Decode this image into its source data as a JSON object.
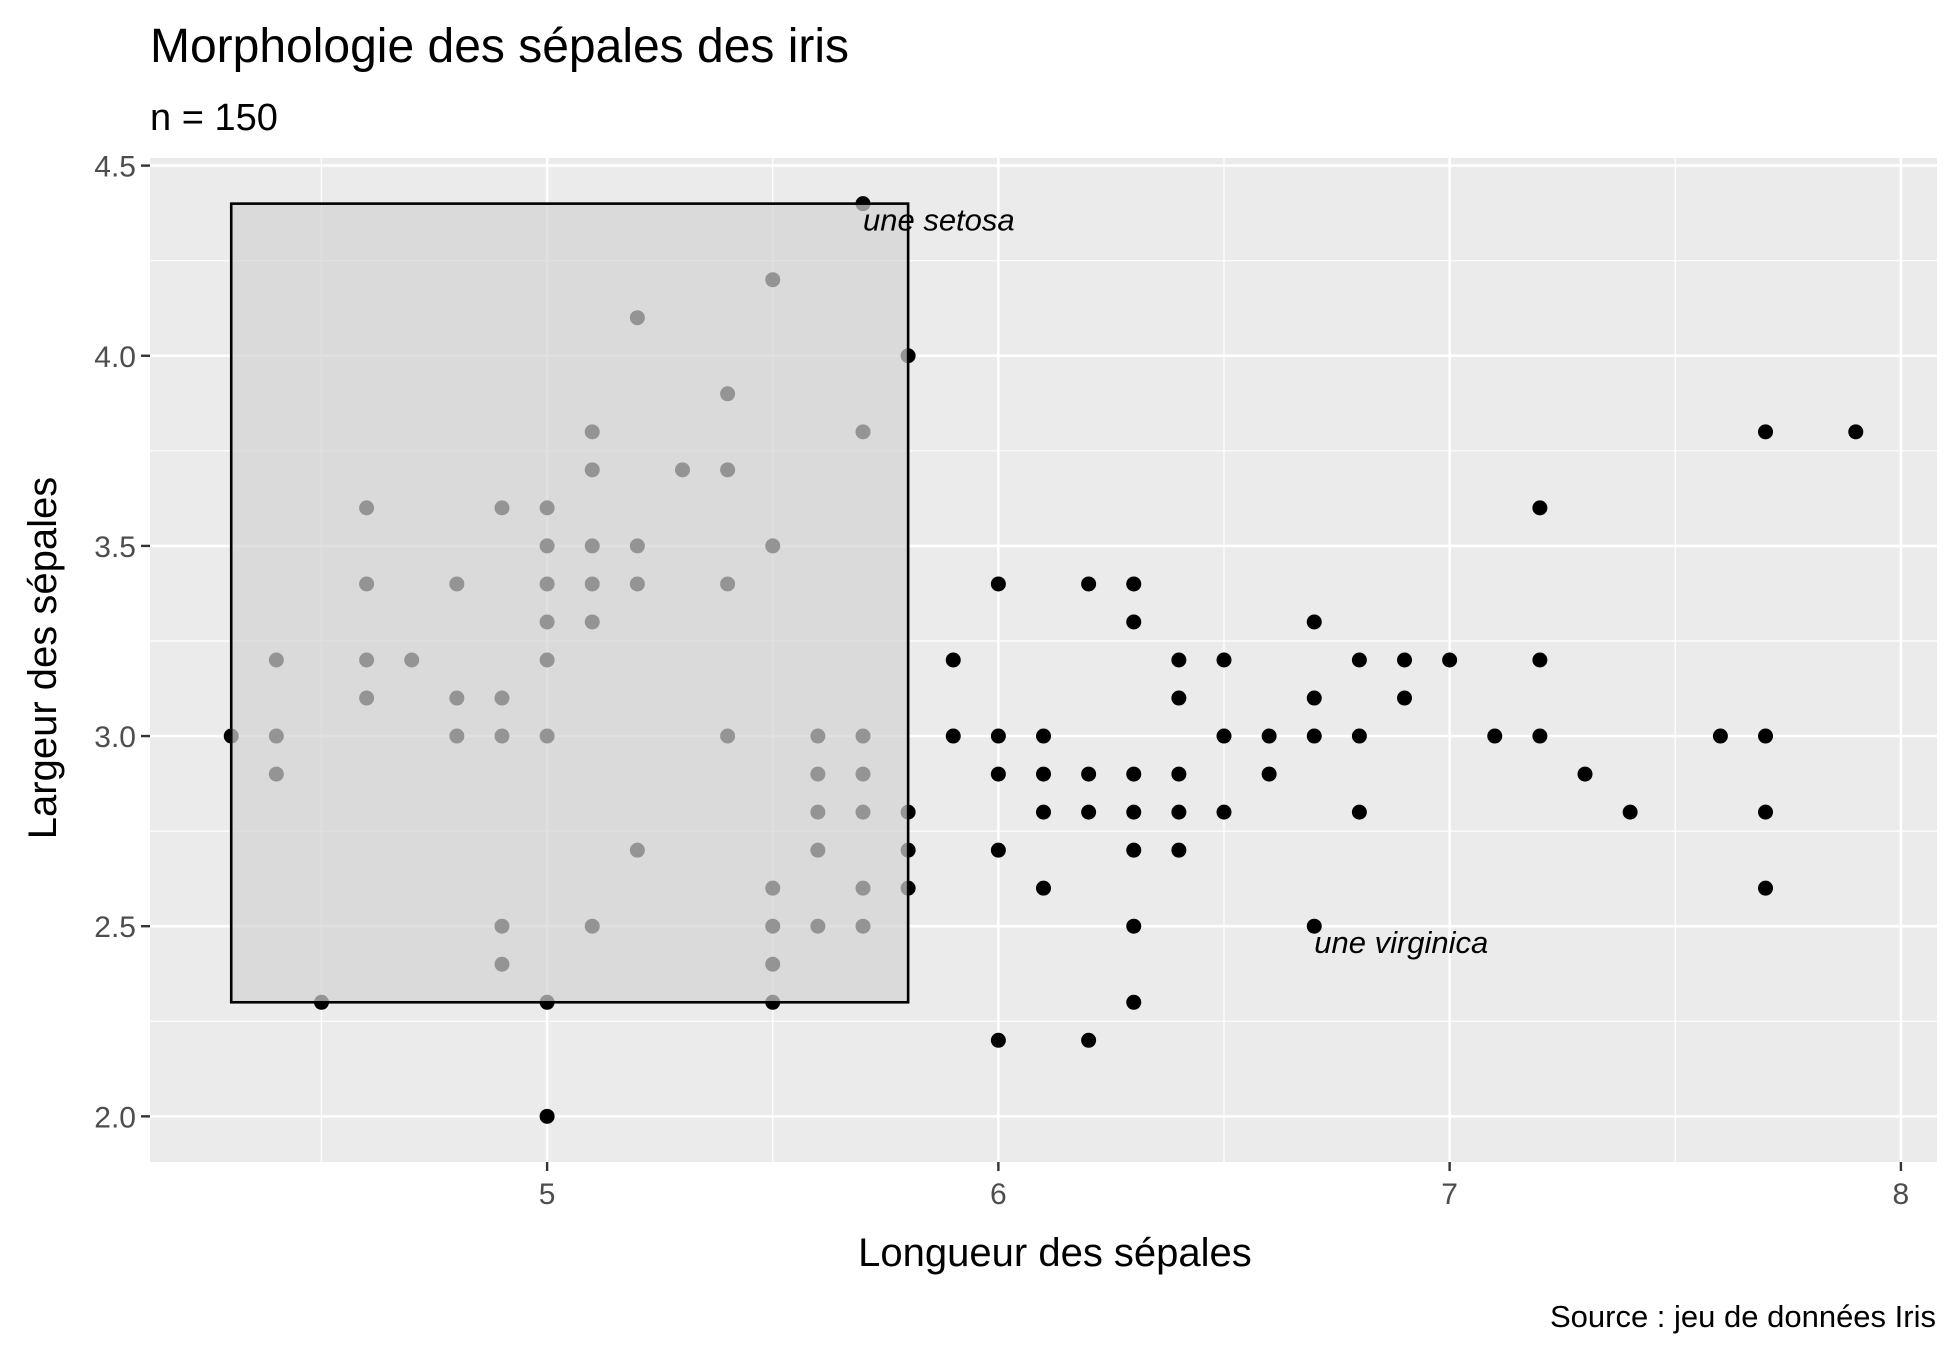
{
  "chart_data": {
    "type": "scatter",
    "title": "Morphologie des sépales des iris",
    "subtitle": "n = 150",
    "xlabel": "Longueur des sépales",
    "ylabel": "Largeur des sépales",
    "caption": "Source : jeu de données Iris",
    "xlim": [
      4.12,
      8.08
    ],
    "ylim": [
      1.88,
      4.52
    ],
    "x_ticks": [
      5,
      6,
      7,
      8
    ],
    "x_tick_labels": [
      "5",
      "6",
      "7",
      "8"
    ],
    "y_ticks": [
      2.0,
      2.5,
      3.0,
      3.5,
      4.0,
      4.5
    ],
    "y_tick_labels": [
      "2.0",
      "2.5",
      "3.0",
      "3.5",
      "4.0",
      "4.5"
    ],
    "grid": true,
    "colors": {
      "panel": "#ebebeb",
      "grid": "#ffffff",
      "points": "#000000",
      "rect_fill": "#d3d3d3",
      "rect_stroke": "#000000"
    },
    "rectangle": {
      "xmin": 4.3,
      "xmax": 5.8,
      "ymin": 2.3,
      "ymax": 4.4
    },
    "annotations": [
      {
        "text": "une setosa",
        "x": 5.7,
        "y": 4.4
      },
      {
        "text": "une virginica",
        "x": 6.7,
        "y": 2.5
      }
    ],
    "points": [
      [
        4.3,
        3.0
      ],
      [
        4.4,
        2.9
      ],
      [
        4.4,
        3.0
      ],
      [
        4.4,
        3.2
      ],
      [
        4.5,
        2.3
      ],
      [
        4.6,
        3.1
      ],
      [
        4.6,
        3.2
      ],
      [
        4.6,
        3.4
      ],
      [
        4.6,
        3.6
      ],
      [
        4.7,
        3.2
      ],
      [
        4.8,
        3.0
      ],
      [
        4.8,
        3.1
      ],
      [
        4.8,
        3.4
      ],
      [
        4.9,
        2.4
      ],
      [
        4.9,
        2.5
      ],
      [
        4.9,
        3.0
      ],
      [
        4.9,
        3.1
      ],
      [
        4.9,
        3.6
      ],
      [
        5.0,
        2.0
      ],
      [
        5.0,
        2.3
      ],
      [
        5.0,
        3.0
      ],
      [
        5.0,
        3.2
      ],
      [
        5.0,
        3.3
      ],
      [
        5.0,
        3.4
      ],
      [
        5.0,
        3.5
      ],
      [
        5.0,
        3.6
      ],
      [
        5.1,
        2.5
      ],
      [
        5.1,
        3.3
      ],
      [
        5.1,
        3.4
      ],
      [
        5.1,
        3.5
      ],
      [
        5.1,
        3.7
      ],
      [
        5.1,
        3.8
      ],
      [
        5.2,
        2.7
      ],
      [
        5.2,
        3.4
      ],
      [
        5.2,
        3.5
      ],
      [
        5.2,
        4.1
      ],
      [
        5.3,
        3.7
      ],
      [
        5.4,
        3.0
      ],
      [
        5.4,
        3.4
      ],
      [
        5.4,
        3.7
      ],
      [
        5.4,
        3.9
      ],
      [
        5.5,
        2.3
      ],
      [
        5.5,
        2.4
      ],
      [
        5.5,
        2.5
      ],
      [
        5.5,
        2.6
      ],
      [
        5.5,
        3.5
      ],
      [
        5.5,
        4.2
      ],
      [
        5.6,
        2.5
      ],
      [
        5.6,
        2.7
      ],
      [
        5.6,
        2.8
      ],
      [
        5.6,
        2.9
      ],
      [
        5.6,
        3.0
      ],
      [
        5.7,
        2.5
      ],
      [
        5.7,
        2.6
      ],
      [
        5.7,
        2.8
      ],
      [
        5.7,
        2.9
      ],
      [
        5.7,
        3.0
      ],
      [
        5.7,
        3.8
      ],
      [
        5.7,
        4.4
      ],
      [
        5.8,
        2.6
      ],
      [
        5.8,
        2.7
      ],
      [
        5.8,
        2.8
      ],
      [
        5.8,
        4.0
      ],
      [
        5.9,
        3.0
      ],
      [
        5.9,
        3.2
      ],
      [
        6.0,
        2.2
      ],
      [
        6.0,
        2.7
      ],
      [
        6.0,
        2.9
      ],
      [
        6.0,
        3.0
      ],
      [
        6.0,
        3.4
      ],
      [
        6.1,
        2.6
      ],
      [
        6.1,
        2.8
      ],
      [
        6.1,
        2.9
      ],
      [
        6.1,
        3.0
      ],
      [
        6.2,
        2.2
      ],
      [
        6.2,
        2.8
      ],
      [
        6.2,
        2.9
      ],
      [
        6.2,
        3.4
      ],
      [
        6.3,
        2.3
      ],
      [
        6.3,
        2.5
      ],
      [
        6.3,
        2.7
      ],
      [
        6.3,
        2.8
      ],
      [
        6.3,
        2.9
      ],
      [
        6.3,
        3.3
      ],
      [
        6.3,
        3.4
      ],
      [
        6.4,
        2.7
      ],
      [
        6.4,
        2.8
      ],
      [
        6.4,
        2.9
      ],
      [
        6.4,
        3.1
      ],
      [
        6.4,
        3.2
      ],
      [
        6.5,
        2.8
      ],
      [
        6.5,
        3.0
      ],
      [
        6.5,
        3.2
      ],
      [
        6.6,
        2.9
      ],
      [
        6.6,
        3.0
      ],
      [
        6.7,
        2.5
      ],
      [
        6.7,
        3.0
      ],
      [
        6.7,
        3.1
      ],
      [
        6.7,
        3.3
      ],
      [
        6.8,
        2.8
      ],
      [
        6.8,
        3.0
      ],
      [
        6.8,
        3.2
      ],
      [
        6.9,
        3.1
      ],
      [
        6.9,
        3.2
      ],
      [
        7.0,
        3.2
      ],
      [
        7.1,
        3.0
      ],
      [
        7.2,
        3.0
      ],
      [
        7.2,
        3.2
      ],
      [
        7.2,
        3.6
      ],
      [
        7.3,
        2.9
      ],
      [
        7.4,
        2.8
      ],
      [
        7.6,
        3.0
      ],
      [
        7.7,
        2.6
      ],
      [
        7.7,
        2.8
      ],
      [
        7.7,
        3.0
      ],
      [
        7.7,
        3.8
      ],
      [
        7.9,
        3.8
      ]
    ]
  }
}
